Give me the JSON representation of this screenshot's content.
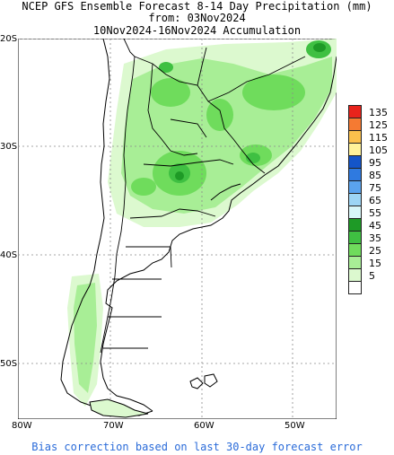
{
  "title": {
    "line1": "NCEP GFS Ensemble Forecast 8-14 Day Precipitation (mm)",
    "line2": "from: 03Nov2024",
    "line3": "10Nov2024-16Nov2024 Accumulation"
  },
  "axes": {
    "lat_labels": [
      "20S",
      "30S",
      "40S",
      "50S"
    ],
    "lon_labels": [
      "80W",
      "70W",
      "60W",
      "50W"
    ]
  },
  "legend": {
    "items": [
      {
        "label": "135",
        "color": "#e8231c"
      },
      {
        "label": "125",
        "color": "#f57a32"
      },
      {
        "label": "115",
        "color": "#fbc04c"
      },
      {
        "label": "105",
        "color": "#fff29a"
      },
      {
        "label": "95",
        "color": "#1455c9"
      },
      {
        "label": "85",
        "color": "#2f7ae0"
      },
      {
        "label": "75",
        "color": "#5aa3ee"
      },
      {
        "label": "65",
        "color": "#9dd5f5"
      },
      {
        "label": "55",
        "color": "#d8f6f8"
      },
      {
        "label": "45",
        "color": "#1e9a26"
      },
      {
        "label": "35",
        "color": "#3fc042"
      },
      {
        "label": "25",
        "color": "#6fdc5c"
      },
      {
        "label": "15",
        "color": "#a8ee96"
      },
      {
        "label": "5",
        "color": "#dcf9cf"
      },
      {
        "label": "",
        "color": "#ffffff"
      }
    ]
  },
  "footer": "Bias correction based on last 30-day forecast error"
}
